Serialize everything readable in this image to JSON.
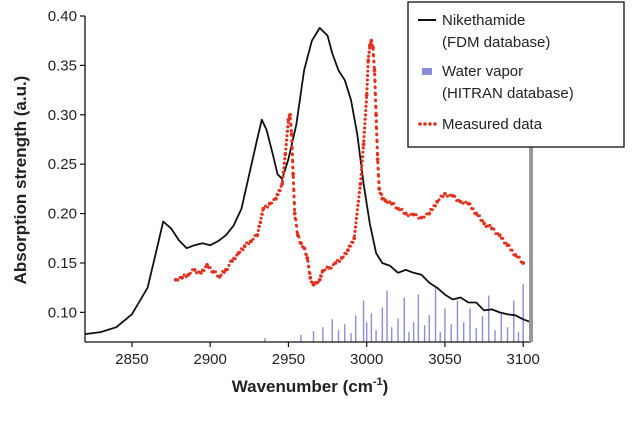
{
  "chart_data": {
    "type": "line",
    "xlabel": "Wavenumber (cm",
    "xlabel_sup": "-1",
    "xlabel_end": ")",
    "ylabel": "Absorption strength (a.u.)",
    "xlim": [
      2820,
      3105
    ],
    "ylim": [
      0.07,
      0.4
    ],
    "x_ticks": [
      "2850",
      "2900",
      "2950",
      "3000",
      "3050",
      "3100"
    ],
    "y_ticks": [
      "0.10",
      "0.15",
      "0.20",
      "0.25",
      "0.30",
      "0.35",
      "0.40"
    ],
    "legend_position": "top-right",
    "series": [
      {
        "name": "Nikethamide",
        "name_line2": "(FDM database)",
        "color": "#111111",
        "style": "line",
        "x": [
          2820,
          2830,
          2840,
          2850,
          2860,
          2866,
          2870,
          2875,
          2880,
          2885,
          2890,
          2895,
          2900,
          2905,
          2910,
          2915,
          2920,
          2925,
          2930,
          2933,
          2936,
          2940,
          2943,
          2946,
          2950,
          2955,
          2960,
          2965,
          2970,
          2975,
          2978,
          2982,
          2986,
          2990,
          2994,
          2998,
          3002,
          3006,
          3010,
          3015,
          3020,
          3025,
          3030,
          3035,
          3040,
          3045,
          3050,
          3055,
          3060,
          3065,
          3070,
          3075,
          3080,
          3085,
          3090,
          3095,
          3100,
          3105
        ],
        "y": [
          0.078,
          0.08,
          0.085,
          0.098,
          0.125,
          0.165,
          0.192,
          0.185,
          0.173,
          0.165,
          0.168,
          0.17,
          0.168,
          0.172,
          0.178,
          0.188,
          0.205,
          0.24,
          0.275,
          0.295,
          0.285,
          0.26,
          0.24,
          0.235,
          0.255,
          0.29,
          0.345,
          0.375,
          0.388,
          0.38,
          0.362,
          0.345,
          0.335,
          0.315,
          0.28,
          0.23,
          0.19,
          0.16,
          0.15,
          0.147,
          0.14,
          0.143,
          0.14,
          0.138,
          0.13,
          0.125,
          0.118,
          0.113,
          0.115,
          0.11,
          0.11,
          0.102,
          0.103,
          0.1,
          0.098,
          0.097,
          0.093,
          0.09
        ]
      },
      {
        "name": "Water vapor",
        "name_line2": "(HITRAN database)",
        "color": "#8a8ed6",
        "style": "stick",
        "x": [
          2935,
          2958,
          2966,
          2972,
          2978,
          2982,
          2986,
          2990,
          2993,
          2998,
          3000,
          3003,
          3006,
          3010,
          3013,
          3016,
          3020,
          3024,
          3027,
          3030,
          3033,
          3037,
          3040,
          3044,
          3047,
          3050,
          3054,
          3058,
          3062,
          3066,
          3070,
          3074,
          3078,
          3082,
          3086,
          3090,
          3094,
          3097,
          3100
        ],
        "y": [
          0.074,
          0.077,
          0.081,
          0.085,
          0.093,
          0.082,
          0.088,
          0.079,
          0.097,
          0.112,
          0.09,
          0.099,
          0.082,
          0.105,
          0.122,
          0.085,
          0.094,
          0.115,
          0.08,
          0.09,
          0.118,
          0.087,
          0.097,
          0.125,
          0.08,
          0.104,
          0.088,
          0.112,
          0.09,
          0.104,
          0.084,
          0.096,
          0.117,
          0.082,
          0.099,
          0.085,
          0.112,
          0.08,
          0.129
        ]
      },
      {
        "name": "Measured data",
        "color": "#e0321e",
        "style": "dots",
        "x": [
          2878,
          2882,
          2886,
          2890,
          2894,
          2898,
          2902,
          2906,
          2910,
          2914,
          2918,
          2922,
          2926,
          2930,
          2934,
          2938,
          2942,
          2946,
          2948,
          2950,
          2951,
          2952,
          2953,
          2954,
          2956,
          2958,
          2960,
          2962,
          2964,
          2966,
          2968,
          2970,
          2972,
          2976,
          2980,
          2984,
          2988,
          2992,
          2996,
          2998,
          3000,
          3001,
          3002,
          3003,
          3004,
          3005,
          3006,
          3007,
          3008,
          3010,
          3012,
          3016,
          3020,
          3025,
          3030,
          3035,
          3040,
          3045,
          3050,
          3055,
          3060,
          3065,
          3070,
          3075,
          3080,
          3085,
          3090,
          3095,
          3100
        ],
        "y": [
          0.133,
          0.135,
          0.138,
          0.143,
          0.14,
          0.148,
          0.141,
          0.136,
          0.143,
          0.152,
          0.16,
          0.167,
          0.172,
          0.178,
          0.205,
          0.21,
          0.215,
          0.23,
          0.26,
          0.295,
          0.3,
          0.28,
          0.24,
          0.2,
          0.178,
          0.17,
          0.165,
          0.155,
          0.135,
          0.128,
          0.13,
          0.133,
          0.142,
          0.145,
          0.15,
          0.155,
          0.163,
          0.175,
          0.23,
          0.27,
          0.32,
          0.355,
          0.37,
          0.375,
          0.368,
          0.345,
          0.3,
          0.255,
          0.225,
          0.215,
          0.213,
          0.21,
          0.205,
          0.2,
          0.199,
          0.196,
          0.2,
          0.212,
          0.22,
          0.218,
          0.212,
          0.21,
          0.2,
          0.19,
          0.185,
          0.178,
          0.168,
          0.158,
          0.15
        ]
      }
    ]
  }
}
